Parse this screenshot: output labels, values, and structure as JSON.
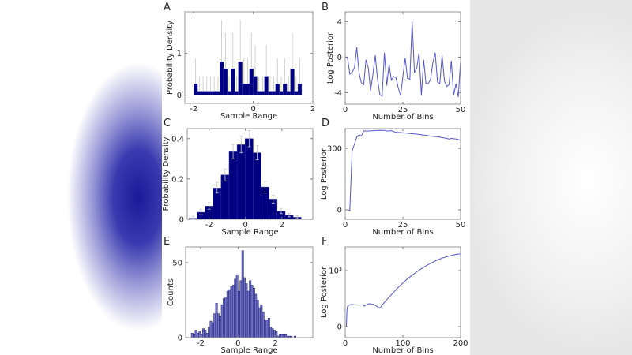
{
  "chart_data": [
    {
      "panel": "A",
      "type": "bar",
      "xlabel": "Sample Range",
      "ylabel": "Probability Density",
      "xlim": [
        -2.3,
        2
      ],
      "ylim": [
        -0.2,
        2.0
      ],
      "xticks": [
        -2,
        0,
        2
      ],
      "xticklabels": [
        "-2",
        "0",
        "2"
      ],
      "yticks": [
        0,
        1
      ],
      "yticklabels": [
        "0",
        "1"
      ],
      "bar_color": "#000080",
      "error_color": "#c8c8c8",
      "bin_start": -2.0,
      "bin_width": 0.125,
      "values": [
        0.27,
        0.09,
        0.09,
        0.09,
        0.09,
        0.09,
        0.09,
        0.8,
        0.63,
        0.09,
        0.63,
        0.09,
        0.8,
        0.27,
        0.27,
        0.63,
        0.45,
        0.09,
        0.09,
        0.45,
        0.09,
        0.09,
        0.27,
        0.09,
        0.27,
        0.09,
        0.63,
        0.09,
        0.27
      ],
      "error_upper": [
        0.88,
        0.45,
        0.45,
        0.45,
        0.45,
        0.45,
        0.45,
        1.8,
        1.5,
        0.45,
        1.5,
        0.45,
        1.8,
        0.88,
        0.88,
        1.5,
        1.2,
        0.45,
        0.45,
        1.2,
        0.45,
        0.45,
        0.88,
        0.45,
        0.88,
        0.45,
        1.5,
        0.45,
        0.88
      ]
    },
    {
      "panel": "B",
      "type": "line",
      "xlabel": "Number of Bins",
      "ylabel": "Log Posterior",
      "xlim": [
        0,
        50
      ],
      "ylim": [
        -5.3,
        5.1
      ],
      "xticks": [
        0,
        25,
        50
      ],
      "xticklabels": [
        "0",
        "25",
        "50"
      ],
      "yticks": [
        4,
        0,
        -4
      ],
      "yticklabels": [
        "4",
        "0",
        "-4"
      ],
      "line_color": "#5555cc",
      "x_start": 0,
      "x_step": 1,
      "values": [
        0,
        -0.1,
        -1.9,
        -1.7,
        -1.2,
        1.1,
        -1.8,
        -2.9,
        -3.1,
        -0.3,
        -1.2,
        -3.8,
        -2,
        0.2,
        -2.5,
        -4.2,
        -4.4,
        0.5,
        -3.2,
        -0.8,
        -2.6,
        -2.2,
        -2.3,
        -3.5,
        -4.3,
        -2.2,
        -0.1,
        -2.4,
        -2.5,
        4,
        -1.7,
        -1.3,
        0.5,
        -4.3,
        -0.3,
        -3,
        -3,
        -2.5,
        -0.6,
        0.5,
        -2.8,
        -3,
        0.2,
        -2.7,
        -3.3,
        -3.1,
        -0.4,
        -4.3,
        -3,
        -4.5,
        -0.4
      ]
    },
    {
      "panel": "C",
      "type": "bar",
      "xlabel": "Sample Range",
      "ylabel": "Probability Density",
      "xlim": [
        -3.2,
        3.7
      ],
      "ylim": [
        0,
        0.45
      ],
      "xticks": [
        -2,
        0,
        2
      ],
      "xticklabels": [
        "-2",
        "0",
        "2"
      ],
      "yticks": [
        0,
        0.2,
        0.4
      ],
      "yticklabels": [
        "0",
        "0.2",
        "0.4"
      ],
      "bar_color": "#000080",
      "error_color": "#c8c8c8",
      "bin_start": -3.1,
      "bin_width": 0.44,
      "values": [
        0.005,
        0.035,
        0.065,
        0.155,
        0.22,
        0.335,
        0.37,
        0.4,
        0.33,
        0.16,
        0.1,
        0.04,
        0.02,
        0.01
      ],
      "error_minus": [
        0.004,
        0.012,
        0.015,
        0.025,
        0.03,
        0.035,
        0.04,
        0.04,
        0.035,
        0.025,
        0.02,
        0.012,
        0.008,
        0.006
      ],
      "error_plus": [
        0.01,
        0.012,
        0.018,
        0.028,
        0.03,
        0.037,
        0.042,
        0.04,
        0.035,
        0.028,
        0.02,
        0.014,
        0.01,
        0.008
      ]
    },
    {
      "panel": "D",
      "type": "line",
      "xlabel": "Number of Bins",
      "ylabel": "Log Posterior",
      "xlim": [
        0,
        50
      ],
      "ylim": [
        -46,
        396
      ],
      "xticks": [
        0,
        25,
        50
      ],
      "xticklabels": [
        "0",
        "25",
        "50"
      ],
      "yticks": [
        0,
        300
      ],
      "yticklabels": [
        "0",
        "300"
      ],
      "line_color": "#5555cc",
      "x": [
        1,
        2,
        3,
        4,
        5,
        6,
        7,
        8,
        10,
        12,
        15,
        17,
        18,
        20,
        22,
        25,
        28,
        30,
        33,
        35,
        38,
        40,
        42,
        44,
        45,
        46,
        48,
        50
      ],
      "values": [
        0,
        -2,
        290,
        320,
        355,
        365,
        360,
        385,
        384,
        386,
        388,
        387,
        384,
        386,
        378,
        376,
        372,
        370,
        366,
        363,
        358,
        356,
        352,
        348,
        345,
        348,
        345,
        340
      ]
    },
    {
      "panel": "E",
      "type": "bar",
      "xlabel": "Sample Range",
      "ylabel": "Counts",
      "xlim": [
        -2.8,
        4.0
      ],
      "ylim": [
        0,
        60.5
      ],
      "xticks": [
        -2,
        0,
        2
      ],
      "xticklabels": [
        "-2",
        "0",
        "2"
      ],
      "yticks": [
        0,
        50
      ],
      "yticklabels": [
        "0",
        "50"
      ],
      "bar_color": "#7272c4",
      "edge_color": "#1c1c78",
      "bin_start": -2.5,
      "bin_width": 0.1,
      "values": [
        3,
        2,
        5,
        3,
        4,
        2,
        6,
        5,
        3,
        7,
        11,
        10,
        16,
        23,
        16,
        14,
        22,
        26,
        27,
        31,
        32,
        34,
        35,
        39,
        42,
        31,
        38,
        58,
        40,
        36,
        31,
        38,
        35,
        33,
        29,
        25,
        20,
        22,
        17,
        12,
        12,
        13,
        7,
        6,
        5,
        4,
        1,
        2,
        2,
        2,
        2,
        1,
        1,
        1,
        0,
        1
      ]
    },
    {
      "panel": "F",
      "type": "line",
      "xlabel": "Number of Bins",
      "ylabel": "Log Posterior",
      "xlim": [
        0,
        200
      ],
      "ylim": [
        -197,
        1423
      ],
      "xticks": [
        0,
        100,
        200
      ],
      "xticklabels": [
        "0",
        "100",
        "200"
      ],
      "yticks": [
        0,
        1000
      ],
      "yticklabels": [
        "0",
        "10³"
      ],
      "line_color": "#5555cc",
      "x": [
        1,
        2,
        3,
        4,
        6,
        10,
        15,
        20,
        25,
        30,
        33,
        38,
        42,
        46,
        50,
        55,
        60,
        70,
        80,
        90,
        100,
        110,
        120,
        130,
        140,
        150,
        160,
        170,
        180,
        190,
        200
      ],
      "values": [
        0,
        5,
        290,
        360,
        380,
        395,
        390,
        388,
        385,
        390,
        365,
        400,
        410,
        400,
        395,
        360,
        330,
        460,
        570,
        680,
        780,
        870,
        950,
        1020,
        1085,
        1140,
        1190,
        1230,
        1260,
        1285,
        1300
      ]
    }
  ]
}
